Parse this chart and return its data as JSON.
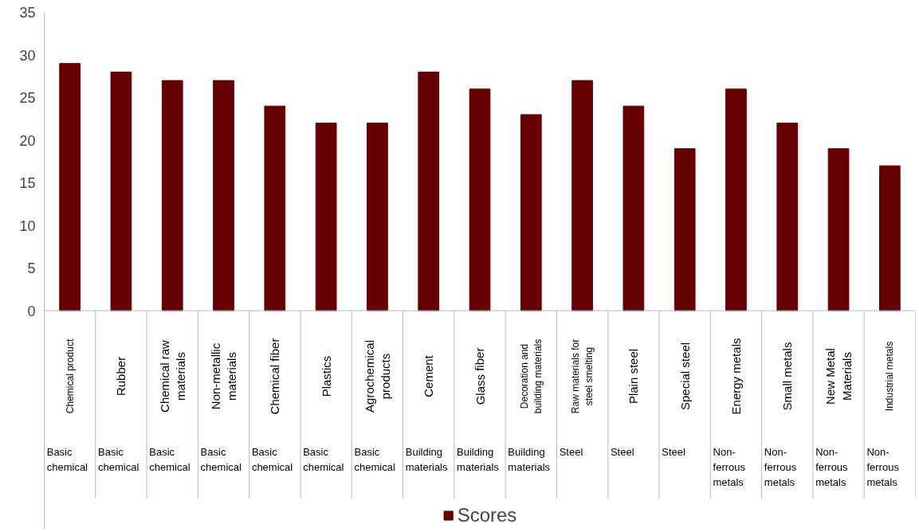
{
  "chart_data": {
    "type": "bar",
    "categories": [
      "Chemical product",
      "Rubber",
      "Chemical raw materials",
      "Non-metallic materials",
      "Chemical fiber",
      "Plastics",
      "Agrochemical products",
      "Cement",
      "Glass fiber",
      "Decoration and building materials",
      "Raw materials for steel smelting",
      "Plain steel",
      "Special steel",
      "Energy metals",
      "Small metals",
      "New Metal Materials",
      "Industrial metals"
    ],
    "annotations": [
      "Basic chemical",
      "Basic chemical",
      "Basic chemical",
      "Basic chemical",
      "Basic chemical",
      "Basic chemical",
      "Basic chemical",
      "Building materials",
      "Building materials",
      "Building materials",
      "Steel",
      "Steel",
      "Steel",
      "Non-ferrous metals",
      "Non-ferrous metals",
      "Non-ferrous metals",
      "Non-ferrous metals"
    ],
    "series": [
      {
        "name": "Scores",
        "color": "#660000",
        "values": [
          29,
          28,
          27,
          27,
          24,
          22,
          22,
          28,
          26,
          23,
          27,
          24,
          19,
          26,
          22,
          19,
          17
        ]
      }
    ],
    "ylim": [
      0,
      35
    ],
    "yticks": [
      0,
      5,
      10,
      15,
      20,
      25,
      30,
      35
    ],
    "grid": false,
    "legend": "bottom"
  }
}
